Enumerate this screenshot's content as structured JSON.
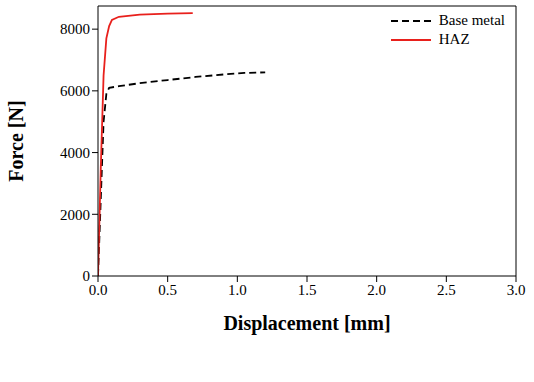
{
  "chart_data": {
    "type": "line",
    "x_label": "Displacement [mm]",
    "y_label": "Force [N]",
    "xlim": [
      0,
      3.0
    ],
    "ylim": [
      0,
      8750
    ],
    "xticks": [
      {
        "value": 0,
        "label": "0.0"
      },
      0.5,
      {
        "value": 1,
        "label": "1.0"
      },
      1.5,
      {
        "value": 2,
        "label": "2.0"
      },
      2.5,
      {
        "value": 3,
        "label": "3.0"
      }
    ],
    "yticks": [
      0,
      2000,
      4000,
      6000,
      8000
    ],
    "grid": false,
    "legend": "upper right",
    "series": [
      {
        "name": "Base metal",
        "color": "#000000",
        "line_style": "dashed",
        "x": [
          0,
          0.02,
          0.04,
          0.06,
          0.08,
          0.15,
          0.3,
          0.5,
          0.7,
          0.9,
          1.05,
          1.2
        ],
        "values": [
          0,
          2500,
          5000,
          5900,
          6100,
          6150,
          6250,
          6350,
          6450,
          6530,
          6580,
          6600
        ]
      },
      {
        "name": "HAZ",
        "color": "#e8201c",
        "line_style": "solid",
        "x": [
          0,
          0.02,
          0.04,
          0.06,
          0.08,
          0.1,
          0.15,
          0.3,
          0.5,
          0.68
        ],
        "values": [
          0,
          3500,
          6500,
          7700,
          8100,
          8300,
          8400,
          8470,
          8500,
          8520
        ]
      }
    ]
  }
}
